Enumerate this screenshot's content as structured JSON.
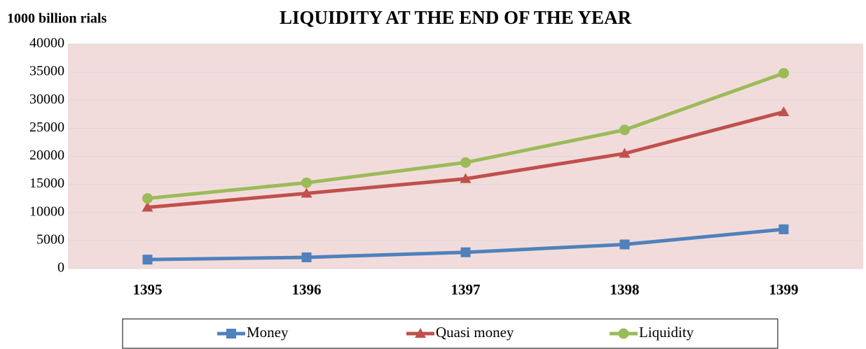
{
  "chart_data": {
    "type": "line",
    "title": "LIQUIDITY AT THE END OF THE YEAR",
    "y_label": "1000 billion rials",
    "categories": [
      "1395",
      "1396",
      "1397",
      "1398",
      "1399"
    ],
    "series": [
      {
        "name": "Money",
        "color": "#4f81bd",
        "marker": "square",
        "values": [
          1600,
          2000,
          2900,
          4300,
          7000
        ]
      },
      {
        "name": "Quasi money",
        "color": "#c0504d",
        "marker": "triangle",
        "values": [
          10900,
          13400,
          16000,
          20500,
          27900
        ]
      },
      {
        "name": "Liquidity",
        "color": "#9bbb59",
        "marker": "circle",
        "values": [
          12500,
          15300,
          18900,
          24700,
          34800
        ]
      }
    ],
    "ylim": [
      0,
      40000
    ],
    "yticks": [
      0,
      5000,
      10000,
      15000,
      20000,
      25000,
      30000,
      35000,
      40000
    ],
    "grid": true,
    "legend": "bottom",
    "plot_background": "#f2dcdb"
  }
}
